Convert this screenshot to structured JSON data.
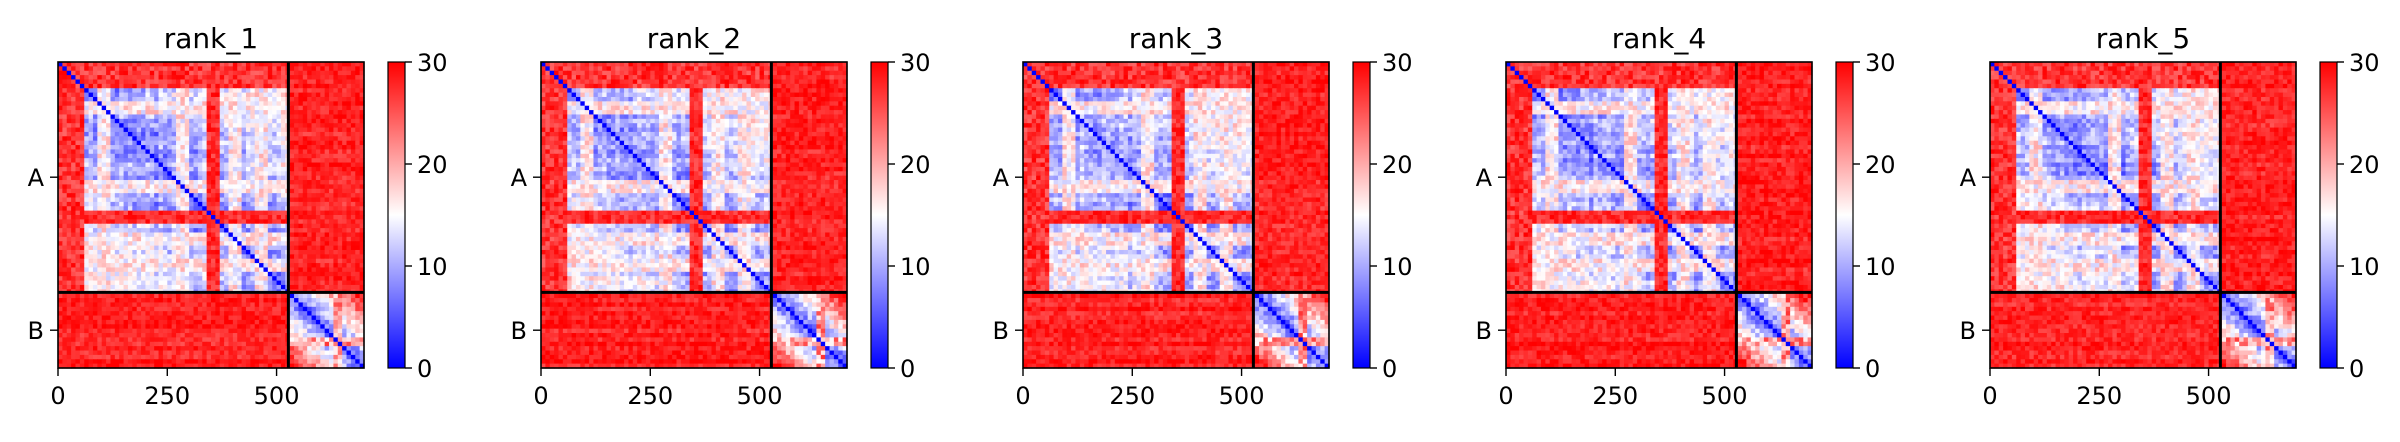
{
  "figure": {
    "chart_data": [
      {
        "type": "heatmap",
        "title": "rank_1",
        "xlabel": "",
        "ylabel": "",
        "x_ticks": [
          0,
          250,
          500
        ],
        "xlim": [
          0,
          700
        ],
        "ylim": [
          0,
          700
        ],
        "chain_boundary": 527,
        "chains": [
          {
            "label": "A",
            "start": 0,
            "end": 527
          },
          {
            "label": "B",
            "start": 527,
            "end": 700
          }
        ],
        "colorbar": {
          "min": 0,
          "max": 30,
          "ticks": [
            0,
            10,
            20,
            30
          ],
          "colormap": "bwr"
        }
      },
      {
        "type": "heatmap",
        "title": "rank_2",
        "xlabel": "",
        "ylabel": "",
        "x_ticks": [
          0,
          250,
          500
        ],
        "xlim": [
          0,
          700
        ],
        "ylim": [
          0,
          700
        ],
        "chain_boundary": 527,
        "chains": [
          {
            "label": "A",
            "start": 0,
            "end": 527
          },
          {
            "label": "B",
            "start": 527,
            "end": 700
          }
        ],
        "colorbar": {
          "min": 0,
          "max": 30,
          "ticks": [
            0,
            10,
            20,
            30
          ],
          "colormap": "bwr"
        }
      },
      {
        "type": "heatmap",
        "title": "rank_3",
        "xlabel": "",
        "ylabel": "",
        "x_ticks": [
          0,
          250,
          500
        ],
        "xlim": [
          0,
          700
        ],
        "ylim": [
          0,
          700
        ],
        "chain_boundary": 527,
        "chains": [
          {
            "label": "A",
            "start": 0,
            "end": 527
          },
          {
            "label": "B",
            "start": 527,
            "end": 700
          }
        ],
        "colorbar": {
          "min": 0,
          "max": 30,
          "ticks": [
            0,
            10,
            20,
            30
          ],
          "colormap": "bwr"
        }
      },
      {
        "type": "heatmap",
        "title": "rank_4",
        "xlabel": "",
        "ylabel": "",
        "x_ticks": [
          0,
          250,
          500
        ],
        "xlim": [
          0,
          700
        ],
        "ylim": [
          0,
          700
        ],
        "chain_boundary": 527,
        "chains": [
          {
            "label": "A",
            "start": 0,
            "end": 527
          },
          {
            "label": "B",
            "start": 527,
            "end": 700
          }
        ],
        "colorbar": {
          "min": 0,
          "max": 30,
          "ticks": [
            0,
            10,
            20,
            30
          ],
          "colormap": "bwr"
        }
      },
      {
        "type": "heatmap",
        "title": "rank_5",
        "xlabel": "",
        "ylabel": "",
        "x_ticks": [
          0,
          250,
          500
        ],
        "xlim": [
          0,
          700
        ],
        "ylim": [
          0,
          700
        ],
        "chain_boundary": 527,
        "chains": [
          {
            "label": "A",
            "start": 0,
            "end": 527
          },
          {
            "label": "B",
            "start": 527,
            "end": 700
          }
        ],
        "colorbar": {
          "min": 0,
          "max": 30,
          "ticks": [
            0,
            10,
            20,
            30
          ],
          "colormap": "bwr"
        }
      }
    ]
  },
  "colors": {
    "low": "#0000ff",
    "mid": "#ffffff",
    "high": "#ff0000",
    "axis": "#000000"
  }
}
